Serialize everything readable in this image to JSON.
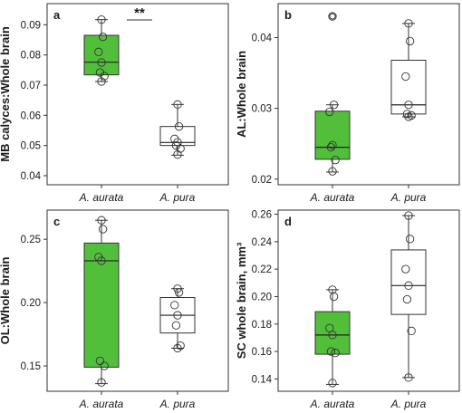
{
  "chart_data": [
    {
      "type": "box",
      "panel_label": "a",
      "ylabel": "MB calyces:Whole brain",
      "ylim": [
        0.037,
        0.097
      ],
      "yticks": [
        0.04,
        0.05,
        0.06,
        0.07,
        0.08,
        0.09
      ],
      "ytick_labels": [
        "0.04",
        "0.05",
        "0.06",
        "0.07",
        "0.08",
        "0.09"
      ],
      "categories": [
        "A. aurata",
        "A. pura"
      ],
      "significance": "**",
      "boxes": [
        {
          "category": "A. aurata",
          "color": "#52bf3b",
          "whisker_low": 0.0712,
          "q1": 0.0734,
          "median": 0.0776,
          "q3": 0.0865,
          "whisker_high": 0.0917,
          "points": [
            0.0917,
            0.086,
            0.081,
            0.0775,
            0.0742,
            0.073,
            0.0712
          ]
        },
        {
          "category": "A. pura",
          "color": "#ffffff",
          "whisker_low": 0.0468,
          "q1": 0.05,
          "median": 0.051,
          "q3": 0.0563,
          "whisker_high": 0.0636,
          "points": [
            0.0636,
            0.0563,
            0.0522,
            0.0511,
            0.05,
            0.049,
            0.047
          ]
        }
      ]
    },
    {
      "type": "box",
      "panel_label": "b",
      "ylabel": "AL:Whole brain",
      "ylim": [
        0.0192,
        0.0448
      ],
      "yticks": [
        0.02,
        0.03,
        0.04
      ],
      "ytick_labels": [
        "0.02",
        "0.03",
        "0.04"
      ],
      "categories": [
        "A. aurata",
        "A. pura"
      ],
      "significance": "",
      "boxes": [
        {
          "category": "A. aurata",
          "color": "#52bf3b",
          "whisker_low": 0.021,
          "q1": 0.0228,
          "median": 0.0245,
          "q3": 0.0296,
          "whisker_high": 0.0305,
          "outliers": [
            0.043
          ],
          "points": [
            0.043,
            0.0305,
            0.0295,
            0.0248,
            0.0245,
            0.0227,
            0.0211
          ]
        },
        {
          "category": "A. pura",
          "color": "#ffffff",
          "whisker_low": 0.0288,
          "q1": 0.0292,
          "median": 0.0305,
          "q3": 0.0368,
          "whisker_high": 0.042,
          "points": [
            0.042,
            0.0395,
            0.0345,
            0.0305,
            0.0292,
            0.029,
            0.0288
          ]
        }
      ]
    },
    {
      "type": "box",
      "panel_label": "c",
      "ylabel": "OL:Whole brain",
      "ylim": [
        0.13,
        0.273
      ],
      "yticks": [
        0.15,
        0.2,
        0.25
      ],
      "ytick_labels": [
        "0.15",
        "0.20",
        "0.25"
      ],
      "categories": [
        "A. aurata",
        "A. pura"
      ],
      "significance": "",
      "boxes": [
        {
          "category": "A. aurata",
          "color": "#52bf3b",
          "whisker_low": 0.136,
          "q1": 0.149,
          "median": 0.233,
          "q3": 0.247,
          "whisker_high": 0.265,
          "points": [
            0.265,
            0.258,
            0.236,
            0.233,
            0.154,
            0.15,
            0.137
          ]
        },
        {
          "category": "A. pura",
          "color": "#ffffff",
          "whisker_low": 0.164,
          "q1": 0.176,
          "median": 0.19,
          "q3": 0.204,
          "whisker_high": 0.211,
          "points": [
            0.211,
            0.208,
            0.198,
            0.19,
            0.182,
            0.166,
            0.164
          ]
        }
      ]
    },
    {
      "type": "box",
      "panel_label": "d",
      "ylabel": "SC whole brain, mm³",
      "ylim": [
        0.131,
        0.263
      ],
      "yticks": [
        0.14,
        0.16,
        0.18,
        0.2,
        0.22,
        0.24,
        0.26
      ],
      "ytick_labels": [
        "0.14",
        "0.16",
        "0.18",
        "0.20",
        "0.22",
        "0.24",
        "0.26"
      ],
      "categories": [
        "A. aurata",
        "A. pura"
      ],
      "significance": "",
      "boxes": [
        {
          "category": "A. aurata",
          "color": "#52bf3b",
          "whisker_low": 0.136,
          "q1": 0.158,
          "median": 0.172,
          "q3": 0.189,
          "whisker_high": 0.205,
          "points": [
            0.205,
            0.2,
            0.177,
            0.172,
            0.16,
            0.159,
            0.137
          ]
        },
        {
          "category": "A. pura",
          "color": "#ffffff",
          "whisker_low": 0.141,
          "q1": 0.187,
          "median": 0.208,
          "q3": 0.234,
          "whisker_high": 0.259,
          "points": [
            0.259,
            0.242,
            0.22,
            0.208,
            0.198,
            0.175,
            0.141
          ]
        }
      ]
    }
  ]
}
